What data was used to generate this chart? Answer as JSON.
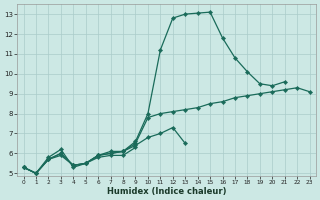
{
  "xlabel": "Humidex (Indice chaleur)",
  "bg_color": "#cce8e4",
  "grid_color": "#aaccca",
  "line_color": "#1a6b5a",
  "xlim": [
    -0.5,
    23.5
  ],
  "ylim": [
    4.85,
    13.5
  ],
  "yticks": [
    5,
    6,
    7,
    8,
    9,
    10,
    11,
    12,
    13
  ],
  "xticks": [
    0,
    1,
    2,
    3,
    4,
    5,
    6,
    7,
    8,
    9,
    10,
    11,
    12,
    13,
    14,
    15,
    16,
    17,
    18,
    19,
    20,
    21,
    22,
    23
  ],
  "lines": [
    {
      "x": [
        0,
        1,
        2,
        3,
        4,
        5,
        6,
        7,
        8,
        9,
        10,
        11,
        12,
        13,
        14,
        15,
        16,
        17,
        18,
        19,
        20,
        21
      ],
      "y": [
        5.3,
        5.0,
        5.8,
        6.2,
        5.3,
        5.5,
        5.9,
        6.1,
        6.1,
        6.6,
        8.0,
        11.2,
        12.8,
        13.0,
        13.05,
        13.1,
        11.8,
        10.8,
        10.1,
        9.5,
        9.4,
        9.6
      ]
    },
    {
      "x": [
        0,
        1,
        2,
        3,
        4,
        5,
        6,
        7,
        8,
        9,
        10,
        11,
        12,
        13,
        14,
        15,
        16,
        17,
        18,
        19,
        20,
        21,
        22,
        23
      ],
      "y": [
        5.3,
        5.0,
        5.7,
        6.0,
        5.4,
        5.5,
        5.9,
        6.0,
        6.1,
        6.5,
        7.8,
        8.0,
        8.1,
        8.2,
        8.3,
        8.5,
        8.6,
        8.8,
        8.9,
        9.0,
        9.1,
        9.2,
        9.3,
        9.1
      ]
    },
    {
      "x": [
        0,
        1,
        2,
        3,
        4,
        5,
        6,
        7,
        8,
        9,
        10,
        11,
        12,
        13
      ],
      "y": [
        5.3,
        5.0,
        5.7,
        6.0,
        5.4,
        5.5,
        5.9,
        6.0,
        6.1,
        6.4,
        6.8,
        7.0,
        7.3,
        6.5
      ]
    },
    {
      "x": [
        0,
        1,
        2,
        3,
        4,
        5,
        6,
        7,
        8,
        9
      ],
      "y": [
        5.3,
        5.0,
        5.7,
        5.9,
        5.4,
        5.5,
        5.8,
        5.9,
        5.9,
        6.3
      ]
    }
  ]
}
